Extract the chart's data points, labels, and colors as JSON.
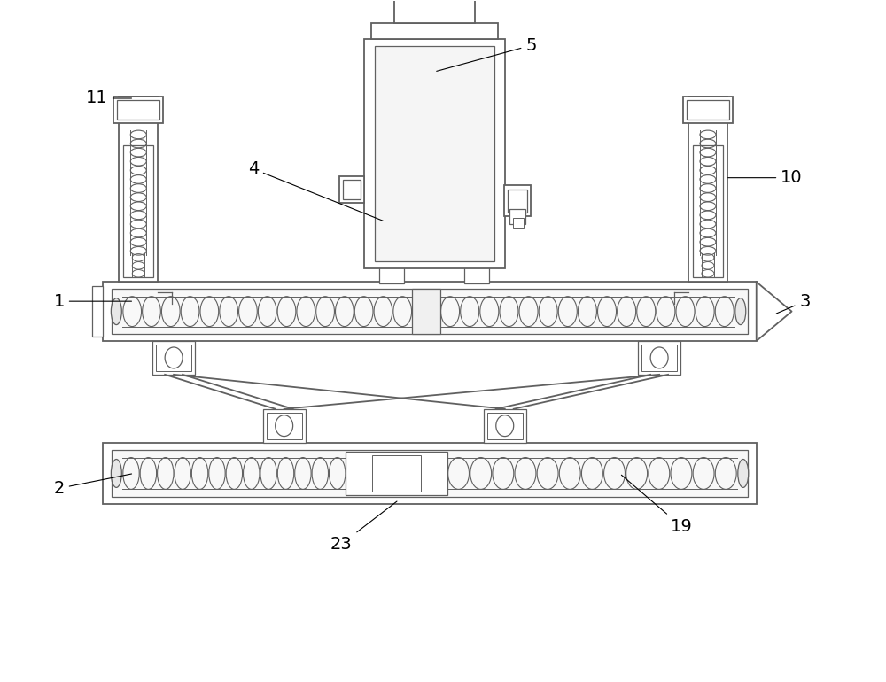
{
  "bg_color": "#ffffff",
  "lc": "#606060",
  "lw": 1.3,
  "lw2": 0.9,
  "lw3": 0.7
}
